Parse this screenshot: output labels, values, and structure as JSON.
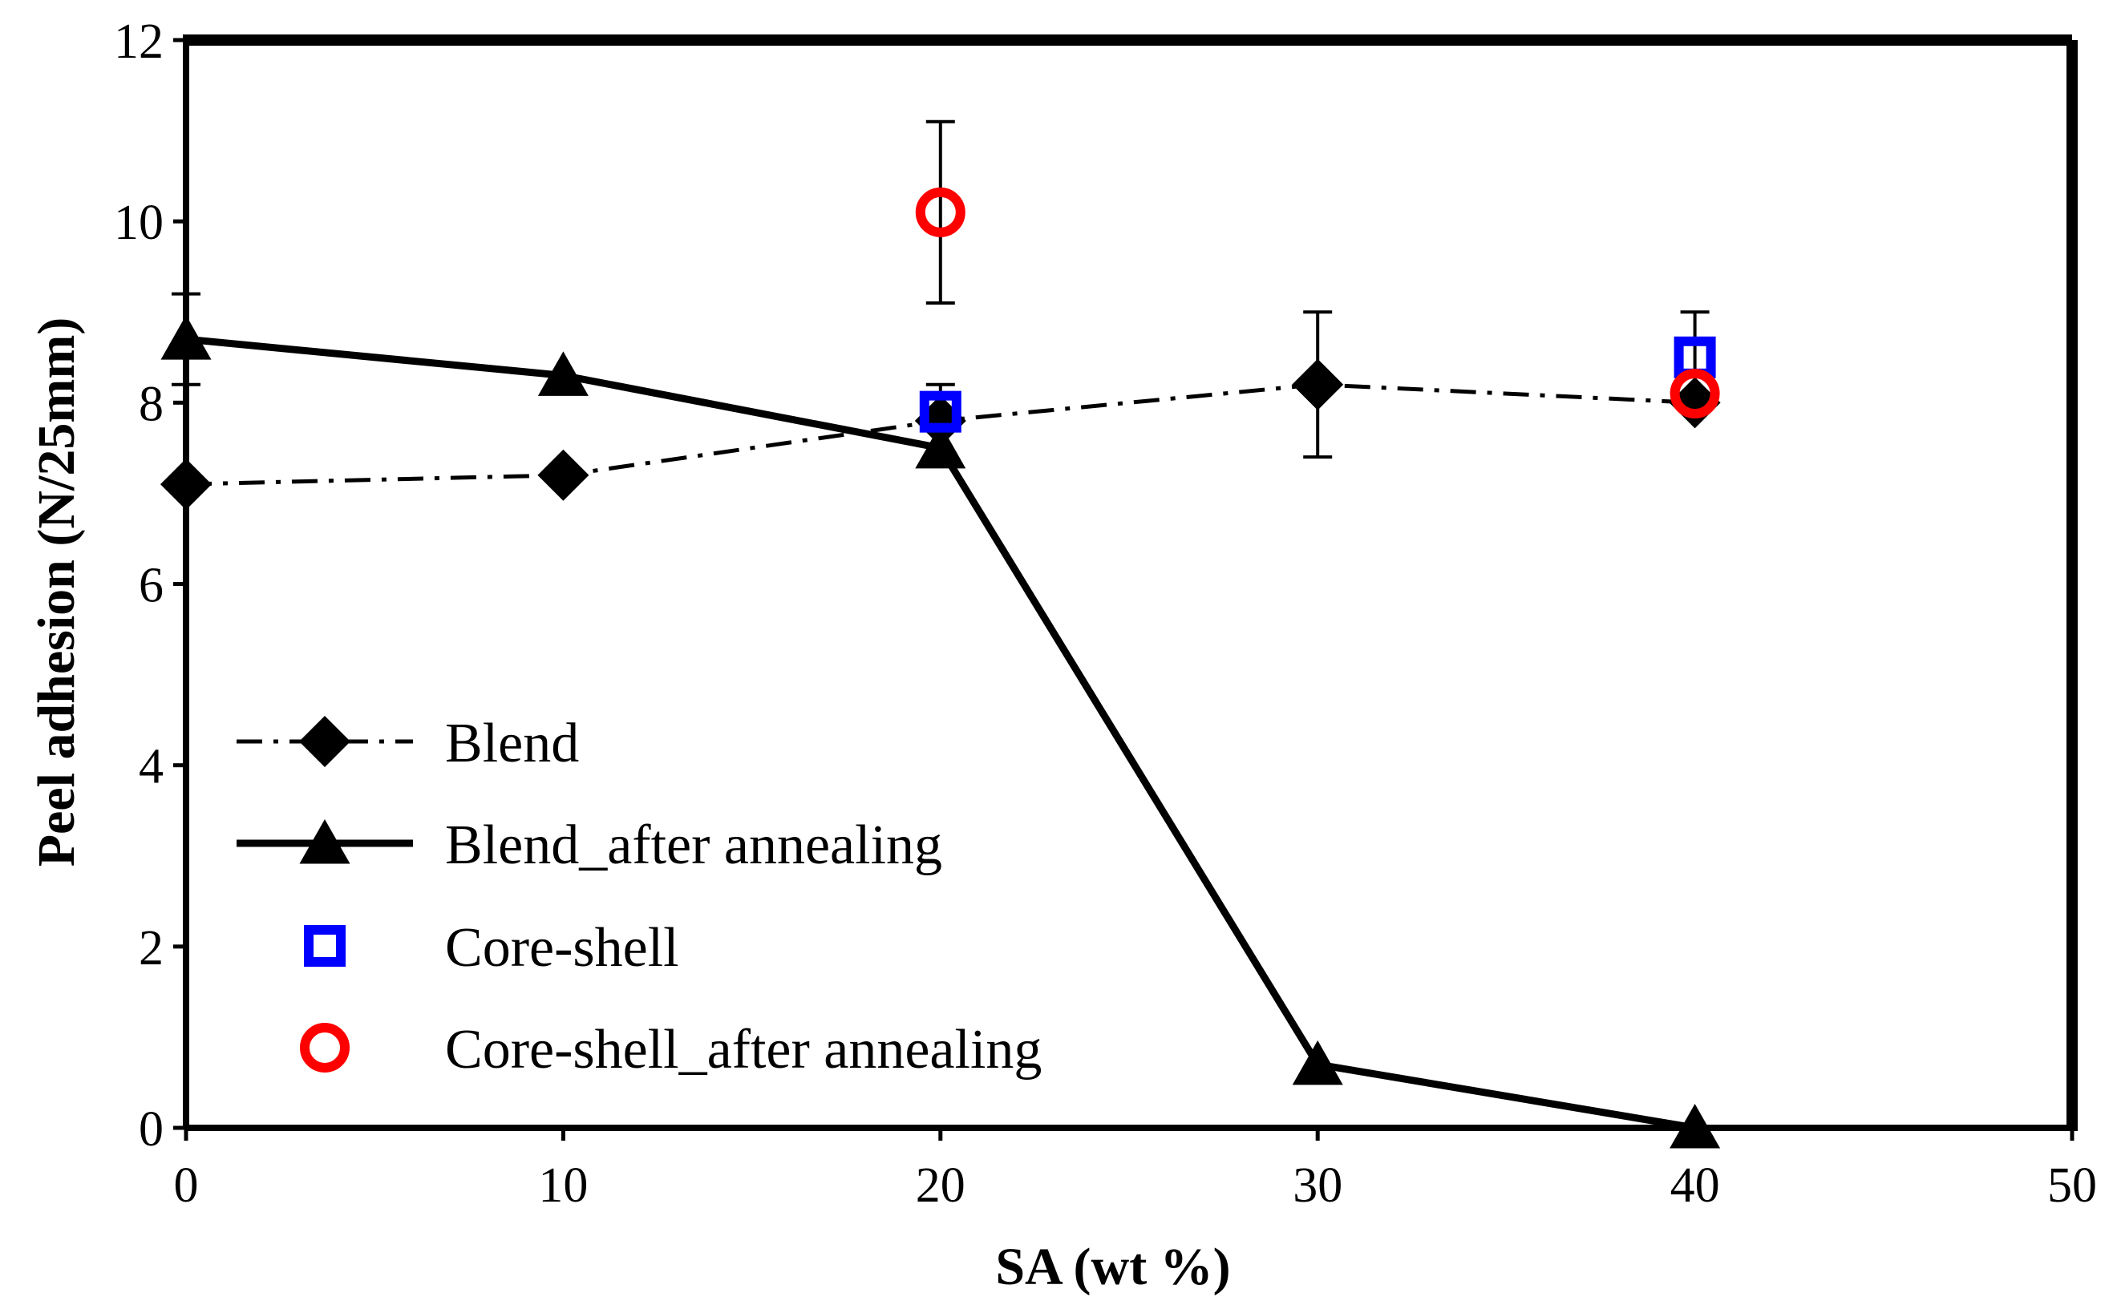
{
  "chart_data": {
    "type": "line",
    "title": "",
    "xlabel": "SA (wt %)",
    "ylabel": "Peel adhesion (N/25mm)",
    "xlim": [
      0,
      50
    ],
    "ylim": [
      0,
      12
    ],
    "xticks": [
      0,
      10,
      20,
      30,
      40,
      50
    ],
    "yticks": [
      0,
      2,
      4,
      6,
      8,
      10,
      12
    ],
    "grid": false,
    "legend_position": "left-bottom",
    "series": [
      {
        "name": "Blend",
        "style": "dash-dot",
        "marker": "diamond",
        "color": "#000000",
        "x": [
          0,
          10,
          20,
          30,
          40
        ],
        "y": [
          7.1,
          7.2,
          7.8,
          8.2,
          8.0
        ],
        "error": [
          0,
          0,
          0.4,
          0.8,
          0
        ]
      },
      {
        "name": "Blend_after annealing",
        "style": "solid",
        "marker": "triangle",
        "color": "#000000",
        "x": [
          0,
          10,
          20,
          30,
          40
        ],
        "y": [
          8.7,
          8.3,
          7.5,
          0.7,
          0.0
        ],
        "error": [
          0.5,
          0,
          0,
          0,
          0
        ]
      },
      {
        "name": "Core-shell",
        "style": "none",
        "marker": "square-open",
        "color": "#0000ff",
        "x": [
          20,
          40
        ],
        "y": [
          7.9,
          8.5
        ],
        "error": [
          0,
          0.5
        ]
      },
      {
        "name": "Core-shell_after annealing",
        "style": "none",
        "marker": "circle-open",
        "color": "#ff0000",
        "x": [
          20,
          40
        ],
        "y": [
          10.1,
          8.1
        ],
        "error": [
          1.0,
          0
        ]
      }
    ]
  }
}
